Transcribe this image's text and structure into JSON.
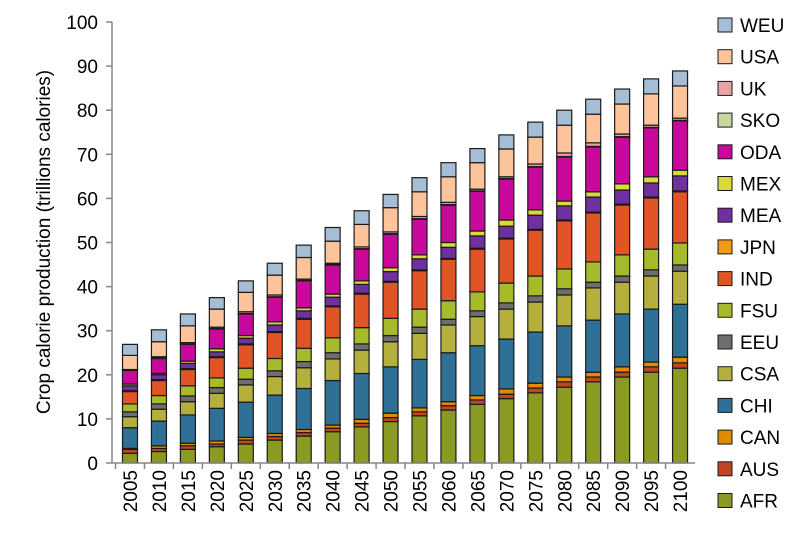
{
  "chart_data": {
    "type": "bar",
    "stacked": true,
    "title": "",
    "xlabel": "",
    "ylabel": "Crop calorie production (trillions calories)",
    "ylim": [
      0,
      100
    ],
    "yticks": [
      "0",
      "10",
      "20",
      "30",
      "40",
      "50",
      "60",
      "70",
      "80",
      "90",
      "100"
    ],
    "grid": false,
    "legend_placement": "right",
    "categories": [
      "2005",
      "2010",
      "2015",
      "2020",
      "2025",
      "2030",
      "2035",
      "2040",
      "2045",
      "2050",
      "2055",
      "2060",
      "2065",
      "2070",
      "2075",
      "2080",
      "2085",
      "2090",
      "2095",
      "2100"
    ],
    "series": [
      {
        "name": "AFR",
        "color": "#8a9a22",
        "values": [
          2.2,
          2.6,
          3.1,
          3.7,
          4.3,
          5.2,
          6.1,
          7.1,
          8.2,
          9.4,
          10.7,
          12.0,
          13.3,
          14.6,
          15.9,
          17.2,
          18.4,
          19.5,
          20.6,
          21.5
        ]
      },
      {
        "name": "AUS",
        "color": "#c0461f",
        "values": [
          0.9,
          0.7,
          0.8,
          0.6,
          0.9,
          0.8,
          0.8,
          0.8,
          0.8,
          0.9,
          0.9,
          1.0,
          1.0,
          1.0,
          1.1,
          1.2,
          1.1,
          1.1,
          1.2,
          1.2
        ]
      },
      {
        "name": "CAN",
        "color": "#e08a00",
        "values": [
          0.2,
          0.6,
          0.6,
          0.7,
          0.6,
          0.7,
          0.7,
          0.7,
          0.9,
          1.0,
          0.9,
          0.9,
          1.0,
          1.2,
          1.1,
          1.1,
          1.1,
          1.2,
          1.1,
          1.3
        ]
      },
      {
        "name": "CHI",
        "color": "#2e7096",
        "values": [
          4.7,
          5.6,
          6.4,
          7.4,
          8.0,
          8.7,
          9.3,
          10.1,
          10.4,
          10.5,
          11.0,
          11.1,
          11.3,
          11.3,
          11.6,
          11.6,
          11.8,
          12.0,
          12.0,
          12.0
        ]
      },
      {
        "name": "CSA",
        "color": "#b5b03d",
        "values": [
          2.5,
          2.7,
          3.0,
          3.4,
          3.9,
          4.2,
          4.7,
          4.9,
          5.3,
          5.7,
          5.9,
          6.3,
          6.6,
          6.8,
          6.8,
          7.0,
          7.3,
          7.2,
          7.5,
          7.5
        ]
      },
      {
        "name": "EEU",
        "color": "#6e6e6e",
        "values": [
          1.1,
          1.2,
          1.3,
          1.3,
          1.3,
          1.3,
          1.4,
          1.4,
          1.4,
          1.4,
          1.4,
          1.3,
          1.3,
          1.4,
          1.4,
          1.4,
          1.3,
          1.4,
          1.4,
          1.4
        ]
      },
      {
        "name": "FSU",
        "color": "#a7ba2c",
        "values": [
          1.8,
          1.9,
          2.3,
          2.2,
          2.5,
          2.8,
          3.0,
          3.4,
          3.7,
          3.9,
          4.1,
          4.2,
          4.3,
          4.5,
          4.5,
          4.5,
          4.6,
          4.8,
          4.7,
          5.0
        ]
      },
      {
        "name": "IND",
        "color": "#e05426",
        "values": [
          2.8,
          3.4,
          3.7,
          4.6,
          5.3,
          5.9,
          6.6,
          7.0,
          7.6,
          8.2,
          8.7,
          9.4,
          9.7,
          10.0,
          10.4,
          10.9,
          11.1,
          11.3,
          11.6,
          11.6
        ]
      },
      {
        "name": "JPN",
        "color": "#f39a11",
        "values": [
          0.2,
          0.2,
          0.2,
          0.2,
          0.2,
          0.2,
          0.2,
          0.2,
          0.2,
          0.2,
          0.2,
          0.2,
          0.2,
          0.2,
          0.2,
          0.2,
          0.2,
          0.2,
          0.2,
          0.2
        ]
      },
      {
        "name": "MEA",
        "color": "#7030a0",
        "values": [
          1.1,
          1.1,
          1.2,
          1.1,
          1.3,
          1.5,
          1.7,
          2.0,
          2.0,
          2.2,
          2.5,
          2.5,
          2.8,
          2.7,
          3.2,
          3.2,
          3.4,
          3.2,
          3.2,
          3.4
        ]
      },
      {
        "name": "MEX",
        "color": "#d8da3a",
        "values": [
          0.4,
          0.3,
          0.5,
          0.7,
          0.6,
          0.7,
          0.7,
          0.7,
          0.8,
          0.9,
          0.9,
          1.1,
          1.1,
          1.4,
          1.2,
          1.1,
          1.2,
          1.4,
          1.4,
          1.3
        ]
      },
      {
        "name": "ODA",
        "color": "#c8099b",
        "values": [
          3.1,
          3.4,
          3.8,
          4.5,
          4.9,
          5.6,
          6.1,
          6.6,
          7.2,
          7.6,
          8.1,
          8.5,
          9.0,
          9.3,
          9.7,
          10.0,
          10.2,
          10.6,
          11.1,
          11.2
        ]
      },
      {
        "name": "SKO",
        "color": "#c8d6a0",
        "values": [
          0.1,
          0.1,
          0.1,
          0.1,
          0.1,
          0.1,
          0.1,
          0.1,
          0.1,
          0.1,
          0.1,
          0.1,
          0.1,
          0.1,
          0.1,
          0.1,
          0.1,
          0.1,
          0.1,
          0.1
        ]
      },
      {
        "name": "UK",
        "color": "#e8a4a4",
        "values": [
          0.1,
          0.3,
          0.3,
          0.3,
          0.4,
          0.4,
          0.3,
          0.3,
          0.4,
          0.4,
          0.5,
          0.5,
          0.4,
          0.4,
          0.6,
          0.8,
          0.8,
          0.6,
          0.5,
          0.5
        ]
      },
      {
        "name": "USA",
        "color": "#fdc49c",
        "values": [
          3.2,
          3.4,
          3.8,
          4.1,
          4.4,
          4.5,
          4.9,
          5.0,
          5.1,
          5.5,
          5.6,
          5.8,
          6.0,
          6.3,
          6.1,
          6.3,
          6.5,
          6.8,
          7.1,
          7.3
        ]
      },
      {
        "name": "WEU",
        "color": "#a6bdd6",
        "values": [
          2.5,
          2.7,
          2.7,
          2.6,
          2.6,
          2.7,
          2.8,
          3.1,
          3.1,
          3.0,
          3.2,
          3.2,
          3.2,
          3.2,
          3.4,
          3.4,
          3.4,
          3.4,
          3.4,
          3.4
        ]
      }
    ]
  }
}
